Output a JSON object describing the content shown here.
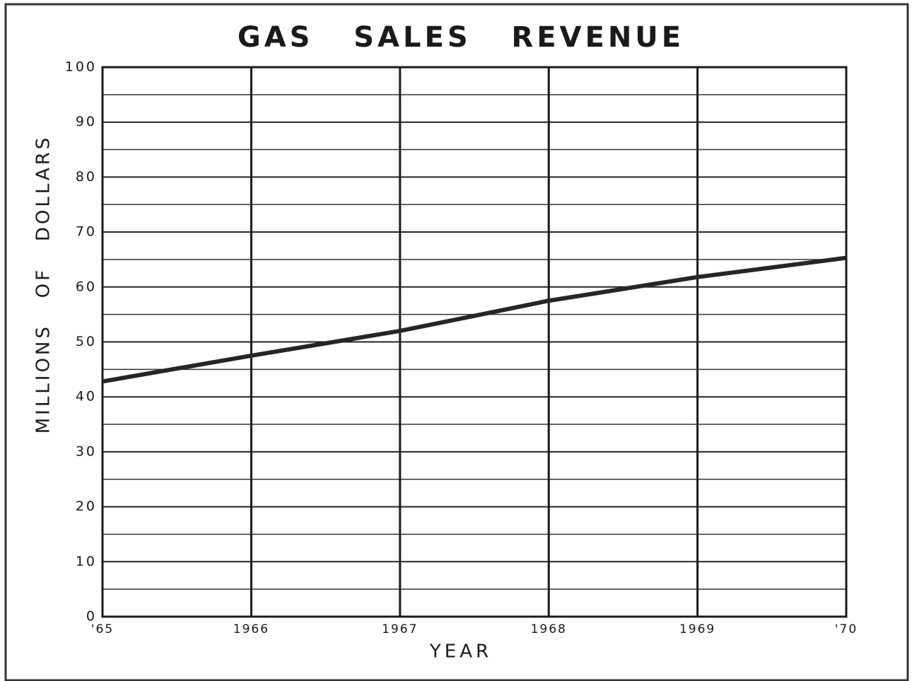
{
  "chart_data": {
    "type": "line",
    "title": "GAS   SALES   REVENUE",
    "xlabel": "YEAR",
    "ylabel": "MILLIONS   OF   DOLLARS",
    "x": [
      1965,
      1966,
      1967,
      1968,
      1969,
      1970
    ],
    "values": [
      42.8,
      47.5,
      52,
      57.5,
      61.8,
      65.3
    ],
    "color": "#262626",
    "xlim": [
      1965,
      1970
    ],
    "xticks": [
      {
        "value": 1965,
        "label": "'65"
      },
      1966,
      1967,
      1968,
      1969,
      {
        "value": 1970,
        "label": "'70"
      }
    ],
    "ylim": [
      0,
      100
    ],
    "yticks": [
      0,
      10,
      20,
      30,
      40,
      50,
      60,
      70,
      80,
      90,
      100
    ],
    "minor_yticks": [
      5,
      15,
      25,
      35,
      45,
      55,
      65,
      75,
      85,
      95
    ],
    "grid": true
  }
}
